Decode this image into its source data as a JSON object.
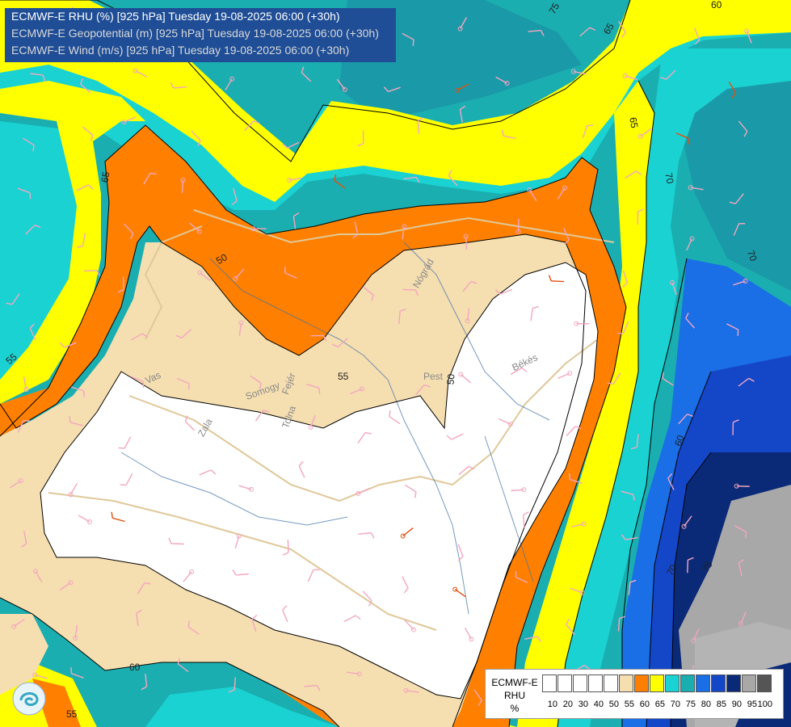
{
  "header": {
    "line1": "ECMWF-E RHU (%) [925 hPa] Tuesday 19-08-2025 06:00 (+30h)",
    "line2": "ECMWF-E Geopotential (m) [925 hPa] Tuesday 19-08-2025 06:00 (+30h)",
    "line3": "ECMWF-E Wind (m/s) [925 hPa] Tuesday 19-08-2025 06:00 (+30h)"
  },
  "legend": {
    "title_line1": "ECMWF-E",
    "title_line2": "RHU",
    "unit": "%",
    "bins": [
      "#ffffff",
      "#ffffff",
      "#ffffff",
      "#ffffff",
      "#ffffff",
      "#f5deb0",
      "#ff8000",
      "#ffff00",
      "#1ad2d2",
      "#1aaeb0",
      "#1a6ee6",
      "#1446c8",
      "#0a2a78",
      "#a8a8a8",
      "#555555"
    ],
    "ticks": [
      "10",
      "20",
      "30",
      "40",
      "50",
      "55",
      "60",
      "65",
      "70",
      "75",
      "80",
      "85",
      "90",
      "95",
      "100"
    ]
  },
  "contour_labels": [
    "75",
    "65",
    "60",
    "65",
    "70",
    "65",
    "55",
    "55",
    "50",
    "50",
    "60",
    "70",
    "60",
    "60",
    "55",
    "70",
    "75"
  ],
  "place_labels": [
    "Vas",
    "Somogy",
    "Fejér",
    "Zala",
    "Tolna",
    "Pest",
    "Békés",
    "Nógrád"
  ]
}
